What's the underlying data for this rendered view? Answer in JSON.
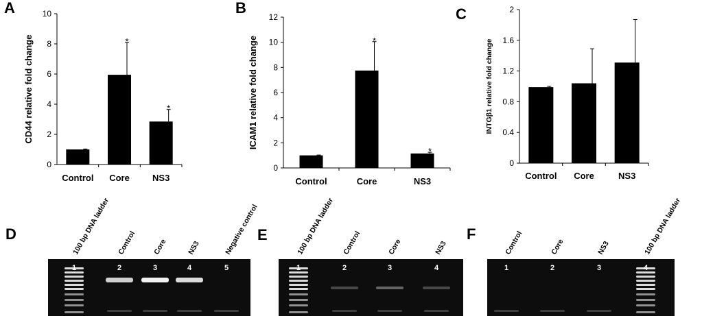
{
  "chart_data": [
    {
      "type": "bar",
      "panel": "A",
      "categories": [
        "Control",
        "Core",
        "NS3"
      ],
      "values": [
        1.0,
        5.95,
        2.85
      ],
      "errors": [
        0.03,
        2.15,
        0.8
      ],
      "significance": [
        "",
        "*",
        "*"
      ],
      "ylabel": "CD44 relative fold change",
      "ylim": [
        0,
        10
      ],
      "yticks": [
        "0",
        "2",
        "4",
        "6",
        "8",
        "10"
      ],
      "bar_color": "#000000"
    },
    {
      "type": "bar",
      "panel": "B",
      "categories": [
        "Control",
        "Core",
        "NS3"
      ],
      "values": [
        1.0,
        7.75,
        1.15
      ],
      "errors": [
        0.03,
        2.3,
        0.1
      ],
      "significance": [
        "",
        "*",
        "*"
      ],
      "ylabel": "ICAM1 relative fold change",
      "ylim": [
        0,
        12
      ],
      "yticks": [
        "0",
        "2",
        "4",
        "6",
        "8",
        "10",
        "12"
      ],
      "bar_color": "#000000"
    },
    {
      "type": "bar",
      "panel": "C",
      "categories": [
        "Control",
        "Core",
        "NS3"
      ],
      "values": [
        0.99,
        1.04,
        1.31
      ],
      "errors": [
        0.01,
        0.45,
        0.56
      ],
      "significance": [
        "",
        "",
        ""
      ],
      "ylabel": "INTGβ1 relative fold change",
      "ylim": [
        0,
        2
      ],
      "yticks": [
        "0",
        "0.4",
        "0.8",
        "1.2",
        "1.6",
        "2"
      ],
      "bar_color": "#000000"
    }
  ],
  "gels": [
    {
      "panel": "D",
      "lanes": [
        {
          "number": "1",
          "title": "100 bp DNA ladder",
          "kind": "ladder"
        },
        {
          "number": "2",
          "title": "Control",
          "kind": "band",
          "intensity": 0.85
        },
        {
          "number": "3",
          "title": "Core",
          "kind": "band",
          "intensity": 1.0
        },
        {
          "number": "4",
          "title": "NS3",
          "kind": "band",
          "intensity": 0.9
        },
        {
          "number": "5",
          "title": "Negative control",
          "kind": "empty"
        }
      ]
    },
    {
      "panel": "E",
      "lanes": [
        {
          "number": "1",
          "title": "100 bp DNA ladder",
          "kind": "ladder"
        },
        {
          "number": "2",
          "title": "Control",
          "kind": "faint",
          "intensity": 0.3
        },
        {
          "number": "3",
          "title": "Core",
          "kind": "faint",
          "intensity": 0.45
        },
        {
          "number": "4",
          "title": "NS3",
          "kind": "faint",
          "intensity": 0.3
        }
      ]
    },
    {
      "panel": "F",
      "lanes": [
        {
          "number": "1",
          "title": "Control",
          "kind": "empty"
        },
        {
          "number": "2",
          "title": "Core",
          "kind": "empty"
        },
        {
          "number": "3",
          "title": "NS3",
          "kind": "empty"
        },
        {
          "number": "4",
          "title": "100 bp DNA ladder",
          "kind": "ladder"
        }
      ]
    }
  ]
}
